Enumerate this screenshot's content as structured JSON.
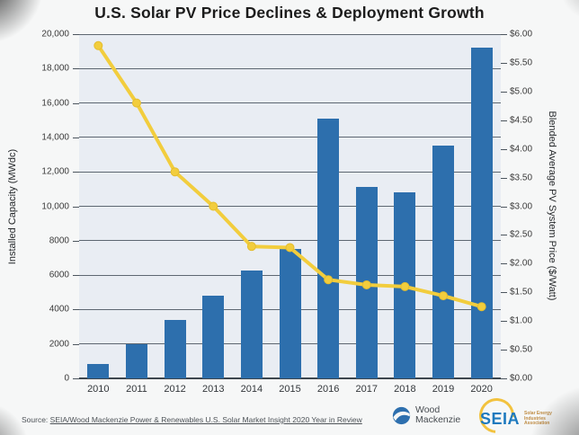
{
  "title": "U.S. Solar PV Price Declines & Deployment Growth",
  "chart_data": {
    "type": "bar",
    "subtype": "bar+line dual-axis combo",
    "categories": [
      "2010",
      "2011",
      "2012",
      "2013",
      "2014",
      "2015",
      "2016",
      "2017",
      "2018",
      "2019",
      "2020"
    ],
    "series": [
      {
        "name": "Installed Capacity (MWdc)",
        "type": "bar",
        "axis": "left",
        "color": "#2d6fad",
        "values": [
          850,
          2000,
          3400,
          4800,
          6250,
          7500,
          15100,
          11100,
          10800,
          13500,
          19200
        ]
      },
      {
        "name": "Blended Average PV System Price ($/Watt)",
        "type": "line",
        "axis": "right",
        "color": "#f2cd3d",
        "values": [
          5.8,
          4.8,
          3.6,
          3.0,
          2.3,
          2.28,
          1.72,
          1.63,
          1.6,
          1.44,
          1.25
        ]
      }
    ],
    "left_axis": {
      "title": "Installed Capacity (MWdc)",
      "min": 0,
      "max": 20000,
      "tick_step": 2000,
      "tick_labels": [
        "0",
        "2000",
        "4000",
        "6000",
        "8000",
        "10,000",
        "12,000",
        "14,000",
        "16,000",
        "18,000",
        "20,000"
      ]
    },
    "right_axis": {
      "title": "Blended Average PV System Price ($/Watt)",
      "min": 0,
      "max": 6,
      "tick_step": 0.5,
      "tick_labels": [
        "$0.00",
        "$0.50",
        "$1.00",
        "$1.50",
        "$2.00",
        "$2.50",
        "$3.00",
        "$3.50",
        "$4.00",
        "$4.50",
        "$5.00",
        "$5.50",
        "$6.00"
      ]
    },
    "grid": "horizontal gridlines every 2000 MWdc",
    "legend_position": "none",
    "plot_bg": "#e9edf3"
  },
  "source": {
    "label": "Source:",
    "link": "SEIA/Wood Mackenzie Power & Renewables U.S. Solar Market Insight 2020 Year in Review"
  },
  "logos": {
    "woodmac": {
      "line1": "Wood",
      "line2": "Mackenzie"
    },
    "seia": {
      "acronym": "SEIA",
      "tagline1": "Solar Energy",
      "tagline2": "Industries",
      "tagline3": "Association"
    }
  }
}
